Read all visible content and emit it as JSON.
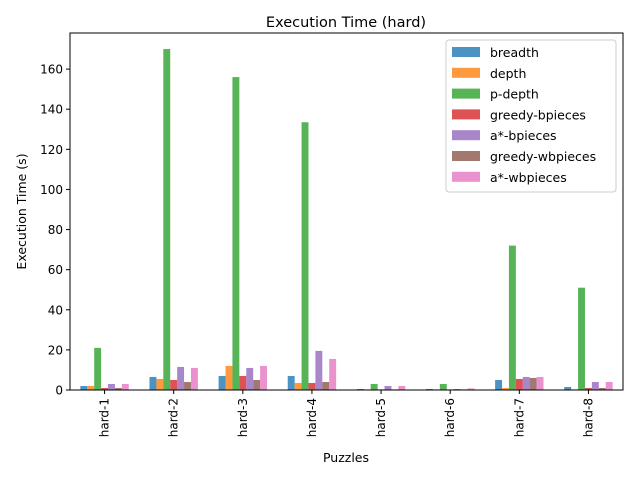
{
  "chart_data": {
    "type": "bar",
    "title": "Execution Time (hard)",
    "xlabel": "Puzzles",
    "ylabel": "Execution Time (s)",
    "ylim": [
      0,
      178
    ],
    "yticks": [
      0,
      20,
      40,
      60,
      80,
      100,
      120,
      140,
      160
    ],
    "grid": false,
    "legend_position": "top-right",
    "categories": [
      "hard-1",
      "hard-2",
      "hard-3",
      "hard-4",
      "hard-5",
      "hard-6",
      "hard-7",
      "hard-8"
    ],
    "series": [
      {
        "name": "breadth",
        "color": "#1f77b4",
        "values": [
          2.0,
          6.5,
          7.0,
          7.0,
          0.5,
          0.5,
          5.0,
          1.5
        ]
      },
      {
        "name": "depth",
        "color": "#ff7f0e",
        "values": [
          2.0,
          5.5,
          12.0,
          3.5,
          0.3,
          0.3,
          1.0,
          0.3
        ]
      },
      {
        "name": "p-depth",
        "color": "#2ca02c",
        "values": [
          21.0,
          170.0,
          156.0,
          133.5,
          3.0,
          3.0,
          72.0,
          51.0
        ]
      },
      {
        "name": "greedy-bpieces",
        "color": "#d62728",
        "values": [
          1.0,
          5.0,
          7.0,
          3.5,
          0.3,
          0.3,
          5.5,
          1.0
        ]
      },
      {
        "name": "a*-bpieces",
        "color": "#9467bd",
        "values": [
          3.0,
          11.5,
          11.0,
          19.5,
          2.0,
          0.5,
          6.5,
          4.0
        ]
      },
      {
        "name": "greedy-wbpieces",
        "color": "#8c564b",
        "values": [
          1.0,
          4.0,
          5.0,
          4.0,
          0.3,
          0.3,
          6.0,
          1.0
        ]
      },
      {
        "name": "a*-wbpieces",
        "color": "#e377c2",
        "values": [
          3.0,
          11.0,
          12.0,
          15.5,
          2.0,
          0.8,
          6.5,
          4.0
        ]
      }
    ]
  }
}
